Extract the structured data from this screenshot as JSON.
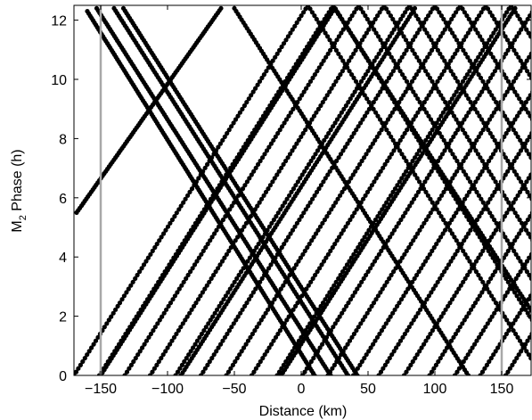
{
  "chart_data": {
    "type": "scatter",
    "xlabel": "Distance (km)",
    "ylabel_main": "M",
    "ylabel_sub": "2",
    "ylabel_rest": " Phase (h)",
    "xlim": [
      -170,
      172
    ],
    "ylim": [
      0,
      12.5
    ],
    "xticks": [
      -150,
      -100,
      -50,
      0,
      50,
      100,
      150
    ],
    "xtick_labels": [
      "−150",
      "−100",
      "−50",
      "0",
      "50",
      "100",
      "150"
    ],
    "yticks": [
      0,
      2,
      4,
      6,
      8,
      10,
      12
    ],
    "ytick_labels": [
      "0",
      "2",
      "4",
      "6",
      "8",
      "10",
      "12"
    ],
    "reference_lines_x": [
      -150,
      150
    ],
    "reference_line_color": "#a8a8a8",
    "marker_color": "#000000",
    "grid": false,
    "series": [
      {
        "kind": "line",
        "x0": -160,
        "y0": 12.3,
        "x1": 10,
        "y1": 0.0,
        "points": 160
      },
      {
        "kind": "line",
        "x0": -153,
        "y0": 12.4,
        "x1": 22,
        "y1": 0.0,
        "points": 160
      },
      {
        "kind": "line",
        "x0": -140,
        "y0": 12.4,
        "x1": 35,
        "y1": 0.0,
        "points": 150
      },
      {
        "kind": "line",
        "x0": -133,
        "y0": 12.4,
        "x1": 42,
        "y1": 0.0,
        "points": 150
      },
      {
        "kind": "line",
        "x0": -50,
        "y0": 12.4,
        "x1": 125,
        "y1": 0.0,
        "points": 130
      },
      {
        "kind": "line",
        "x0": 25,
        "y0": 12.4,
        "x1": 172,
        "y1": 2.2,
        "points": 110
      },
      {
        "kind": "line",
        "x0": -150,
        "y0": 0.0,
        "x1": 25,
        "y1": 12.4,
        "points": 130
      },
      {
        "kind": "line",
        "x0": -90,
        "y0": 0.0,
        "x1": 85,
        "y1": 12.4,
        "points": 130
      },
      {
        "kind": "line",
        "x0": -15,
        "y0": 0.0,
        "x1": 160,
        "y1": 12.4,
        "points": 130
      },
      {
        "kind": "line",
        "x0": -168,
        "y0": 5.5,
        "x1": -60,
        "y1": 12.4,
        "points": 90
      },
      {
        "kind": "zigzag",
        "start": -170,
        "slope": 0.129,
        "count": 9,
        "step": 38,
        "points": 36
      },
      {
        "kind": "zigzag",
        "start": -151,
        "slope": 0.129,
        "count": 9,
        "step": 38,
        "points": 36
      },
      {
        "kind": "zigzag",
        "start": -170,
        "slope": -0.129,
        "count": 9,
        "step": 38,
        "points": 36
      },
      {
        "kind": "zigzag",
        "start": -151,
        "slope": -0.129,
        "count": 9,
        "step": 38,
        "points": 36
      }
    ]
  }
}
